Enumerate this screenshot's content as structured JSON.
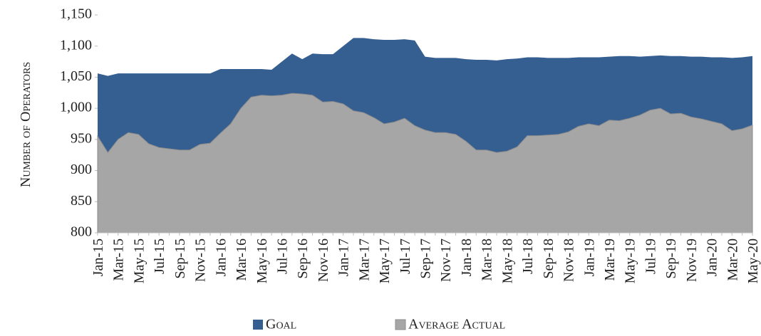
{
  "chart_data": {
    "type": "area",
    "y_label": "Number of Operators",
    "categories": [
      "Jan-15",
      null,
      "Mar-15",
      null,
      "May-15",
      null,
      "Jul-15",
      null,
      "Sep-15",
      null,
      "Nov-15",
      null,
      "Jan-16",
      null,
      "Mar-16",
      null,
      "May-16",
      null,
      "Jul-16",
      null,
      "Sep-16",
      null,
      "Nov-16",
      null,
      "Jan-17",
      null,
      "Mar-17",
      null,
      "May-17",
      null,
      "Jul-17",
      null,
      "Sep-17",
      null,
      "Nov-17",
      null,
      "Jan-18",
      null,
      "Mar-18",
      null,
      "May-18",
      null,
      "Jul-18",
      null,
      "Sep-18",
      null,
      "Nov-18",
      null,
      "Jan-19",
      null,
      "Mar-19",
      null,
      "May-19",
      null,
      "Jul-19",
      null,
      "Sep-19",
      null,
      "Nov-19",
      null,
      "Jan-20",
      null,
      "Mar-20",
      null,
      "May-20"
    ],
    "series": [
      {
        "name": "Goal",
        "color": "#355e91",
        "values": [
          1056,
          1052,
          1056,
          1056,
          1056,
          1056,
          1056,
          1056,
          1056,
          1056,
          1056,
          1056,
          1063,
          1063,
          1063,
          1063,
          1063,
          1062,
          1075,
          1088,
          1079,
          1088,
          1087,
          1087,
          1100,
          1113,
          1113,
          1111,
          1110,
          1110,
          1111,
          1109,
          1083,
          1081,
          1081,
          1081,
          1079,
          1078,
          1078,
          1077,
          1079,
          1080,
          1082,
          1082,
          1081,
          1081,
          1081,
          1082,
          1082,
          1082,
          1083,
          1084,
          1084,
          1083,
          1084,
          1085,
          1084,
          1084,
          1083,
          1083,
          1082,
          1082,
          1081,
          1082,
          1084
        ]
      },
      {
        "name": "Average Actual",
        "color": "#a6a6a6",
        "values": [
          955,
          929,
          950,
          961,
          958,
          943,
          937,
          935,
          933,
          933,
          942,
          944,
          960,
          975,
          1000,
          1018,
          1021,
          1020,
          1021,
          1024,
          1023,
          1021,
          1010,
          1011,
          1007,
          996,
          993,
          985,
          975,
          978,
          984,
          972,
          965,
          961,
          961,
          958,
          947,
          933,
          933,
          929,
          931,
          938,
          956,
          956,
          957,
          958,
          962,
          971,
          975,
          972,
          981,
          980,
          984,
          989,
          997,
          1000,
          991,
          992,
          986,
          983,
          979,
          975,
          964,
          967,
          973
        ]
      }
    ],
    "ylim": [
      800,
      1150
    ],
    "yticks": [
      800,
      850,
      900,
      950,
      {
        "value": 1000,
        "label": "1,000"
      },
      {
        "value": 1050,
        "label": "1,050"
      },
      {
        "value": 1100,
        "label": "1,100"
      },
      {
        "value": 1150,
        "label": "1,150"
      }
    ],
    "legend": "bottom"
  }
}
